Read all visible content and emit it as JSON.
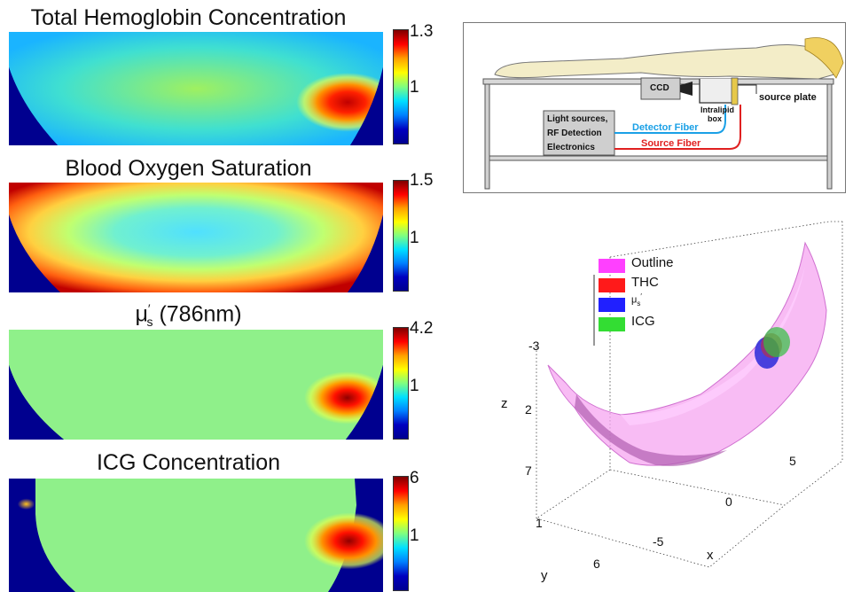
{
  "panels": [
    {
      "title": "Total Hemoglobin Concentration",
      "cbar_max": "1.3",
      "cbar_mid": "1"
    },
    {
      "title": "Blood Oxygen Saturation",
      "cbar_max": "1.5",
      "cbar_mid": "1"
    },
    {
      "title": "(786nm)",
      "title_symbol": "μ",
      "title_sup": "′",
      "title_sub": "s",
      "cbar_max": "4.2",
      "cbar_mid": "1"
    },
    {
      "title": "ICG Concentration",
      "cbar_max": "6",
      "cbar_mid": "1"
    }
  ],
  "schematic": {
    "ccd": "CCD",
    "source_plate": "source plate",
    "intralipid": "Intralipid",
    "box": "box",
    "electronics_lines": [
      "Light sources,",
      "RF Detection",
      "Electronics"
    ],
    "detector_fiber": "Detector Fiber",
    "source_fiber": "Source Fiber",
    "detector_color": "#1aa0e6",
    "source_color": "#e02020"
  },
  "legend": [
    {
      "label": "Outline",
      "color": "#ff40ff"
    },
    {
      "label": "THC",
      "color": "#ff1a1a"
    },
    {
      "label": "μ",
      "sub": "s",
      "sup": "′",
      "color": "#2020ff"
    },
    {
      "label": "ICG",
      "color": "#33dd33"
    }
  ],
  "axes3d": {
    "z_label": "z",
    "x_label": "x",
    "y_label": "y",
    "z_ticks": [
      "-3",
      "2",
      "7"
    ],
    "x_ticks": [
      "5",
      "0",
      "-5"
    ],
    "y_ticks": [
      "1",
      "6"
    ]
  }
}
